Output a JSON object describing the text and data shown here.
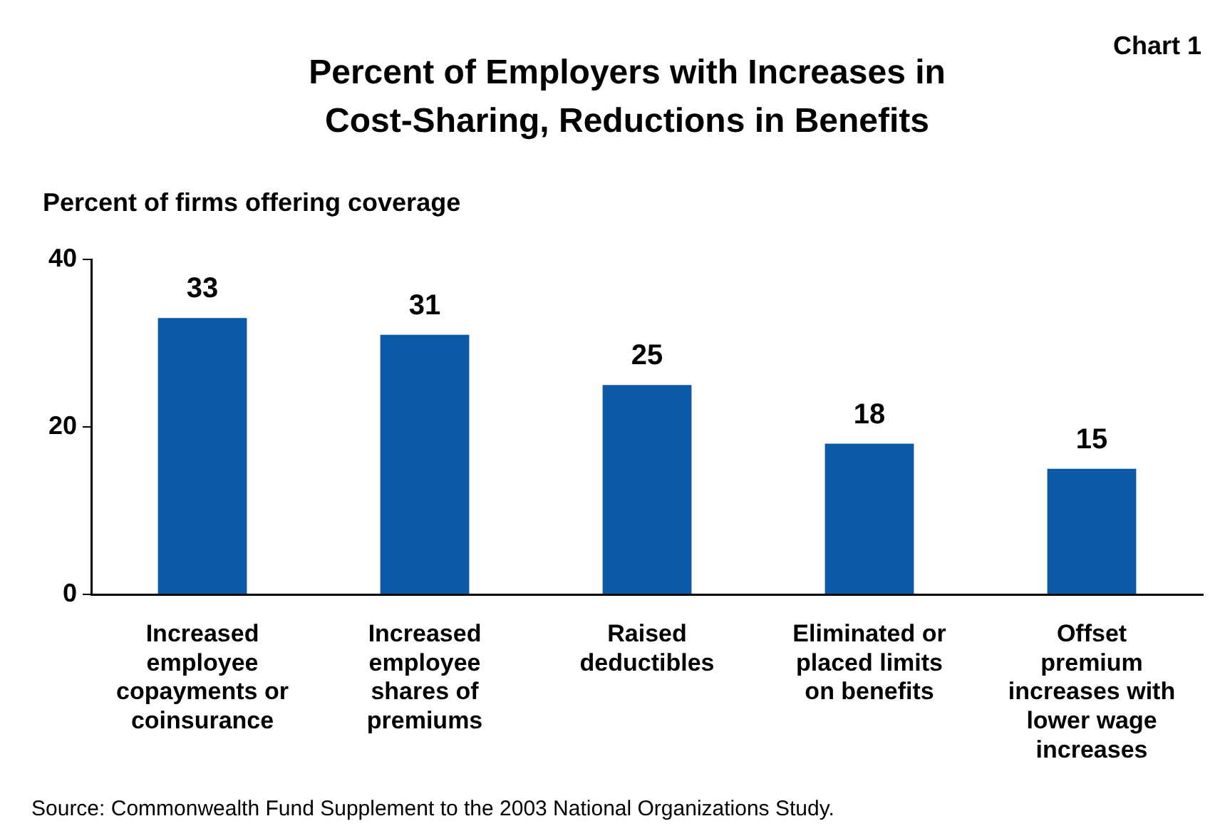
{
  "chart_data": {
    "type": "bar",
    "title": "Percent of Employers with Increases in Cost-Sharing, Reductions in Benefits",
    "ylabel": "Percent of firms offering coverage",
    "annotations": [
      "Chart 1",
      "Source: Commonwealth Fund Supplement to the 2003 National Organizations Study."
    ],
    "categories": [
      "Increased employee copayments or coinsurance",
      "Increased employee shares of premiums",
      "Raised deductibles",
      "Eliminated or placed limits on benefits",
      "Offset premium increases with lower wage increases"
    ],
    "values": [
      33,
      31,
      25,
      18,
      15
    ],
    "color": "#0b59a7",
    "ylim": [
      0,
      40
    ],
    "yticks": [
      0,
      20,
      40
    ],
    "grid": false,
    "legend": false,
    "data_labels": true
  }
}
